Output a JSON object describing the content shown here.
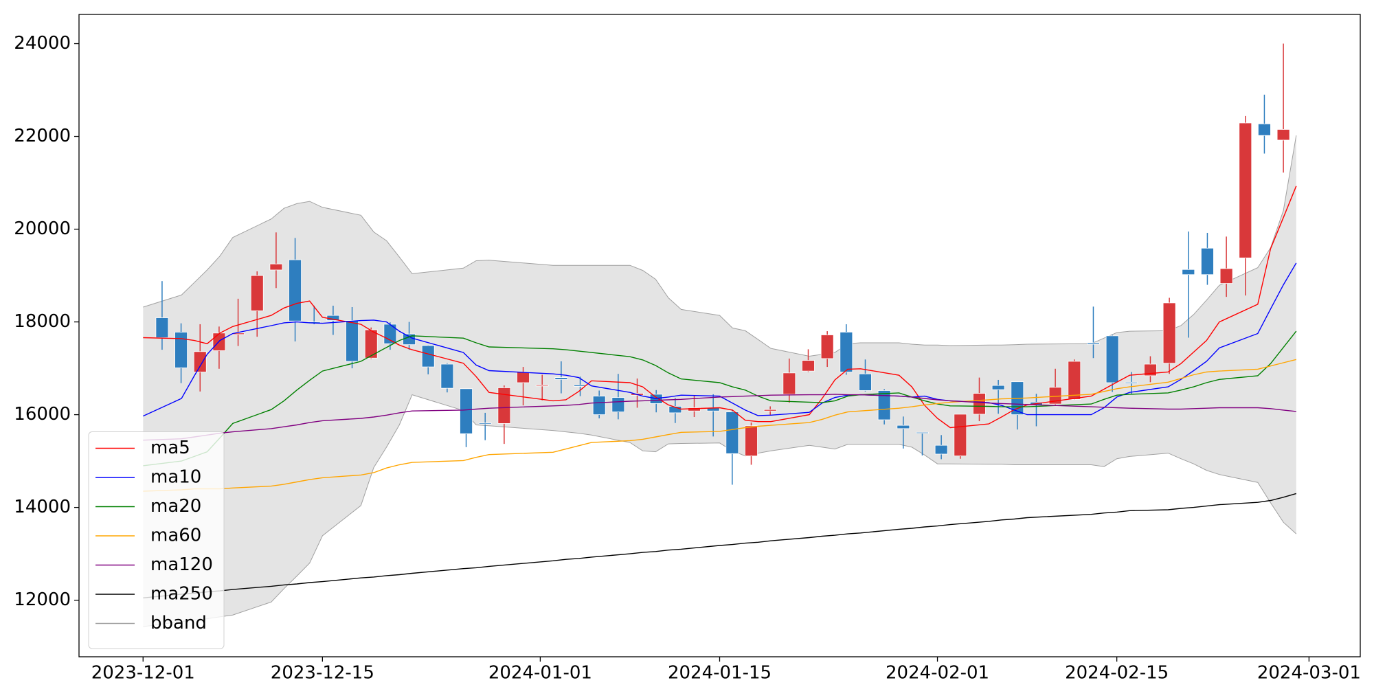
{
  "chart_data": {
    "type": "candlestick",
    "x": [
      "2023-12-01",
      "2023-12-04",
      "2023-12-05",
      "2023-12-06",
      "2023-12-07",
      "2023-12-08",
      "2023-12-11",
      "2023-12-12",
      "2023-12-13",
      "2023-12-14",
      "2023-12-15",
      "2023-12-18",
      "2023-12-19",
      "2023-12-20",
      "2023-12-21",
      "2023-12-22",
      "2023-12-26",
      "2023-12-27",
      "2023-12-28",
      "2024-01-02",
      "2024-01-03",
      "2024-01-04",
      "2024-01-05",
      "2024-01-08",
      "2024-01-09",
      "2024-01-10",
      "2024-01-11",
      "2024-01-12",
      "2024-01-15",
      "2024-01-16",
      "2024-01-17",
      "2024-01-18",
      "2024-01-19",
      "2024-01-22",
      "2024-01-23",
      "2024-01-24",
      "2024-01-25",
      "2024-01-26",
      "2024-01-29",
      "2024-01-30",
      "2024-01-31",
      "2024-02-01",
      "2024-02-02",
      "2024-02-05",
      "2024-02-06",
      "2024-02-07",
      "2024-02-08",
      "2024-02-13",
      "2024-02-14",
      "2024-02-15",
      "2024-02-16",
      "2024-02-19",
      "2024-02-20",
      "2024-02-21",
      "2024-02-22",
      "2024-02-23",
      "2024-02-26",
      "2024-02-27",
      "2024-02-28",
      "2024-02-29"
    ],
    "open": [
      18090,
      17780,
      16920,
      17380,
      17730,
      18240,
      19120,
      19340,
      18000,
      18140,
      18030,
      17220,
      17950,
      17740,
      17490,
      17090,
      16560,
      15820,
      15810,
      16690,
      16620,
      16800,
      16640,
      16400,
      16370,
      16420,
      16440,
      16180,
      16080,
      16150,
      16060,
      15110,
      16080,
      16440,
      16940,
      17210,
      17780,
      16880,
      16520,
      15770,
      15620,
      15340,
      15110,
      16010,
      16630,
      16710,
      16270,
      16230,
      16330,
      17550,
      17700,
      16700,
      16840,
      17110,
      19130,
      19590,
      18830,
      19380,
      22270,
      21920
    ],
    "high": [
      18880,
      17970,
      17950,
      17900,
      18500,
      19090,
      19930,
      19810,
      18350,
      18350,
      18320,
      17880,
      17990,
      18000,
      17500,
      17110,
      16560,
      16040,
      16630,
      17030,
      16860,
      17150,
      16820,
      16520,
      16880,
      16780,
      16530,
      16360,
      16420,
      16440,
      16100,
      15830,
      16180,
      17210,
      17410,
      17800,
      17950,
      17190,
      16550,
      15960,
      15620,
      15560,
      16010,
      16800,
      16750,
      16710,
      16450,
      16990,
      17190,
      18330,
      17720,
      16920,
      17260,
      18520,
      19950,
      19920,
      19840,
      22440,
      22900,
      24000
    ],
    "low": [
      17400,
      16680,
      16500,
      16990,
      17480,
      17680,
      18730,
      17580,
      17950,
      17720,
      17000,
      17200,
      17400,
      17400,
      16870,
      16480,
      15300,
      15450,
      15370,
      16200,
      16310,
      16460,
      16400,
      15920,
      15900,
      16150,
      16050,
      15820,
      15950,
      15530,
      14490,
      14920,
      15980,
      16260,
      16920,
      17030,
      16860,
      16500,
      15790,
      15270,
      15120,
      15040,
      15050,
      15860,
      16020,
      15680,
      15750,
      16200,
      16320,
      17220,
      16490,
      16450,
      16700,
      16880,
      17660,
      18800,
      18540,
      18570,
      21630,
      21220
    ],
    "close": [
      17660,
      17010,
      17360,
      17760,
      17760,
      19000,
      19250,
      18020,
      17980,
      18030,
      17150,
      17830,
      17530,
      17510,
      17030,
      16570,
      15590,
      15800,
      16580,
      16920,
      16640,
      16760,
      16610,
      16000,
      16060,
      16460,
      16240,
      16040,
      16150,
      16080,
      15160,
      15760,
      16110,
      16900,
      17170,
      17720,
      16920,
      16520,
      15890,
      15700,
      15600,
      15150,
      16010,
      16460,
      16540,
      16000,
      16210,
      16590,
      17150,
      17520,
      16690,
      16680,
      17090,
      18410,
      19020,
      19020,
      19150,
      22290,
      22020,
      22150
    ],
    "up_color": "#d9383a",
    "down_color": "#2e7ebf",
    "lines": [
      {
        "name": "ma5",
        "color": "#ff0000",
        "values": [
          17660,
          17640,
          17600,
          17530,
          17760,
          17900,
          18140,
          18300,
          18400,
          18450,
          18100,
          17950,
          17780,
          17650,
          17500,
          17400,
          17110,
          16820,
          16480,
          16300,
          16320,
          16500,
          16730,
          16690,
          16600,
          16380,
          16210,
          16120,
          16150,
          16100,
          15880,
          15850,
          15850,
          16000,
          16350,
          16750,
          16980,
          16990,
          16850,
          16600,
          16200,
          15920,
          15720,
          15800,
          15950,
          16110,
          16210,
          16400,
          16550,
          16700,
          16850,
          16920,
          17100,
          17350,
          17600,
          18000,
          18380,
          19580,
          20250,
          20930
        ]
      },
      {
        "name": "ma10",
        "color": "#0000ff",
        "values": [
          15970,
          16350,
          16840,
          17300,
          17600,
          17750,
          17920,
          17980,
          18000,
          17980,
          17970,
          18030,
          18040,
          18000,
          17800,
          17650,
          17340,
          17070,
          16950,
          16880,
          16850,
          16800,
          16620,
          16480,
          16400,
          16350,
          16380,
          16420,
          16400,
          16250,
          16100,
          15980,
          15990,
          16050,
          16250,
          16370,
          16420,
          16430,
          16400,
          16380,
          16400,
          16330,
          16300,
          16260,
          16200,
          16100,
          16000,
          16000,
          16150,
          16380,
          16480,
          16600,
          16760,
          16950,
          17150,
          17440,
          17750,
          18280,
          18800,
          19270
        ]
      },
      {
        "name": "ma20",
        "color": "#008000",
        "values": [
          14900,
          15000,
          15100,
          15200,
          15500,
          15810,
          16110,
          16300,
          16530,
          16740,
          16940,
          17150,
          17300,
          17450,
          17600,
          17700,
          17650,
          17550,
          17460,
          17420,
          17400,
          17370,
          17340,
          17250,
          17180,
          17060,
          16900,
          16770,
          16690,
          16600,
          16530,
          16400,
          16300,
          16270,
          16260,
          16300,
          16400,
          16430,
          16470,
          16380,
          16300,
          16230,
          16190,
          16180,
          16170,
          16170,
          16170,
          16230,
          16330,
          16420,
          16440,
          16470,
          16530,
          16600,
          16690,
          16760,
          16840,
          17100,
          17450,
          17800
        ]
      },
      {
        "name": "ma60",
        "color": "#ffa500",
        "values": [
          14350,
          14380,
          14400,
          14400,
          14400,
          14420,
          14460,
          14500,
          14550,
          14600,
          14640,
          14700,
          14750,
          14850,
          14920,
          14970,
          15010,
          15080,
          15140,
          15190,
          15260,
          15330,
          15400,
          15440,
          15470,
          15520,
          15570,
          15620,
          15640,
          15680,
          15720,
          15750,
          15770,
          15830,
          15900,
          15990,
          16060,
          16080,
          16140,
          16170,
          16210,
          16240,
          16270,
          16320,
          16340,
          16350,
          16360,
          16440,
          16500,
          16560,
          16600,
          16700,
          16780,
          16860,
          16920,
          16940,
          16980,
          17050,
          17120,
          17190
        ]
      },
      {
        "name": "ma120",
        "color": "#800080",
        "values": [
          15450,
          15480,
          15520,
          15560,
          15600,
          15630,
          15700,
          15740,
          15780,
          15830,
          15870,
          15920,
          15950,
          15990,
          16040,
          16080,
          16100,
          16120,
          16140,
          16190,
          16200,
          16220,
          16250,
          16290,
          16300,
          16310,
          16320,
          16330,
          16380,
          16390,
          16400,
          16410,
          16420,
          16430,
          16430,
          16440,
          16430,
          16430,
          16400,
          16380,
          16350,
          16320,
          16300,
          16250,
          16240,
          16230,
          16220,
          16170,
          16160,
          16150,
          16140,
          16120,
          16120,
          16130,
          16140,
          16150,
          16150,
          16130,
          16100,
          16070
        ]
      },
      {
        "name": "ma250",
        "color": "#000000",
        "values": [
          12050,
          12130,
          12150,
          12180,
          12200,
          12230,
          12300,
          12330,
          12350,
          12380,
          12400,
          12480,
          12500,
          12530,
          12550,
          12580,
          12680,
          12700,
          12730,
          12850,
          12880,
          12900,
          12930,
          13000,
          13030,
          13050,
          13080,
          13100,
          13180,
          13200,
          13230,
          13250,
          13280,
          13350,
          13380,
          13400,
          13430,
          13450,
          13530,
          13550,
          13580,
          13600,
          13630,
          13700,
          13730,
          13750,
          13780,
          13850,
          13880,
          13900,
          13930,
          13950,
          13980,
          14000,
          14030,
          14060,
          14110,
          14150,
          14220,
          14300
        ]
      }
    ],
    "band": {
      "name": "bband",
      "color": "#a0a0a0",
      "fill": "#e4e4e4",
      "upper": [
        18320,
        18580,
        18850,
        19120,
        19420,
        19820,
        20220,
        20450,
        20550,
        20600,
        20470,
        20300,
        19940,
        19750,
        19400,
        19040,
        19160,
        19320,
        19330,
        19220,
        19220,
        19220,
        19220,
        19220,
        19110,
        18920,
        18520,
        18270,
        18140,
        17870,
        17810,
        17620,
        17430,
        17260,
        17300,
        17340,
        17530,
        17550,
        17550,
        17520,
        17500,
        17500,
        17490,
        17500,
        17500,
        17510,
        17520,
        17530,
        17650,
        17770,
        17800,
        17810,
        17920,
        18160,
        18470,
        18790,
        19170,
        19600,
        20400,
        22020
      ],
      "lower": [
        11430,
        11540,
        11570,
        11600,
        11640,
        11680,
        11960,
        12250,
        12520,
        12800,
        13390,
        14040,
        14860,
        15300,
        15780,
        16430,
        16090,
        15780,
        15760,
        15660,
        15630,
        15600,
        15560,
        15400,
        15220,
        15200,
        15370,
        15380,
        15390,
        15220,
        15110,
        15170,
        15220,
        15340,
        15300,
        15260,
        15360,
        15360,
        15360,
        15300,
        15130,
        14940,
        14940,
        14930,
        14930,
        14920,
        14920,
        14920,
        14880,
        15050,
        15100,
        15170,
        15050,
        14940,
        14800,
        14710,
        14540,
        14100,
        13680,
        13430
      ]
    },
    "xlim": [
      "2023-11-26",
      "2024-03-05"
    ],
    "xticks": [
      "2023-12-01",
      "2023-12-15",
      "2024-01-01",
      "2024-01-15",
      "2024-02-01",
      "2024-02-15",
      "2024-03-01"
    ],
    "ylim": [
      10780,
      24630
    ],
    "yticks": [
      12000,
      14000,
      16000,
      18000,
      20000,
      22000,
      24000
    ],
    "legend": "lower left"
  }
}
